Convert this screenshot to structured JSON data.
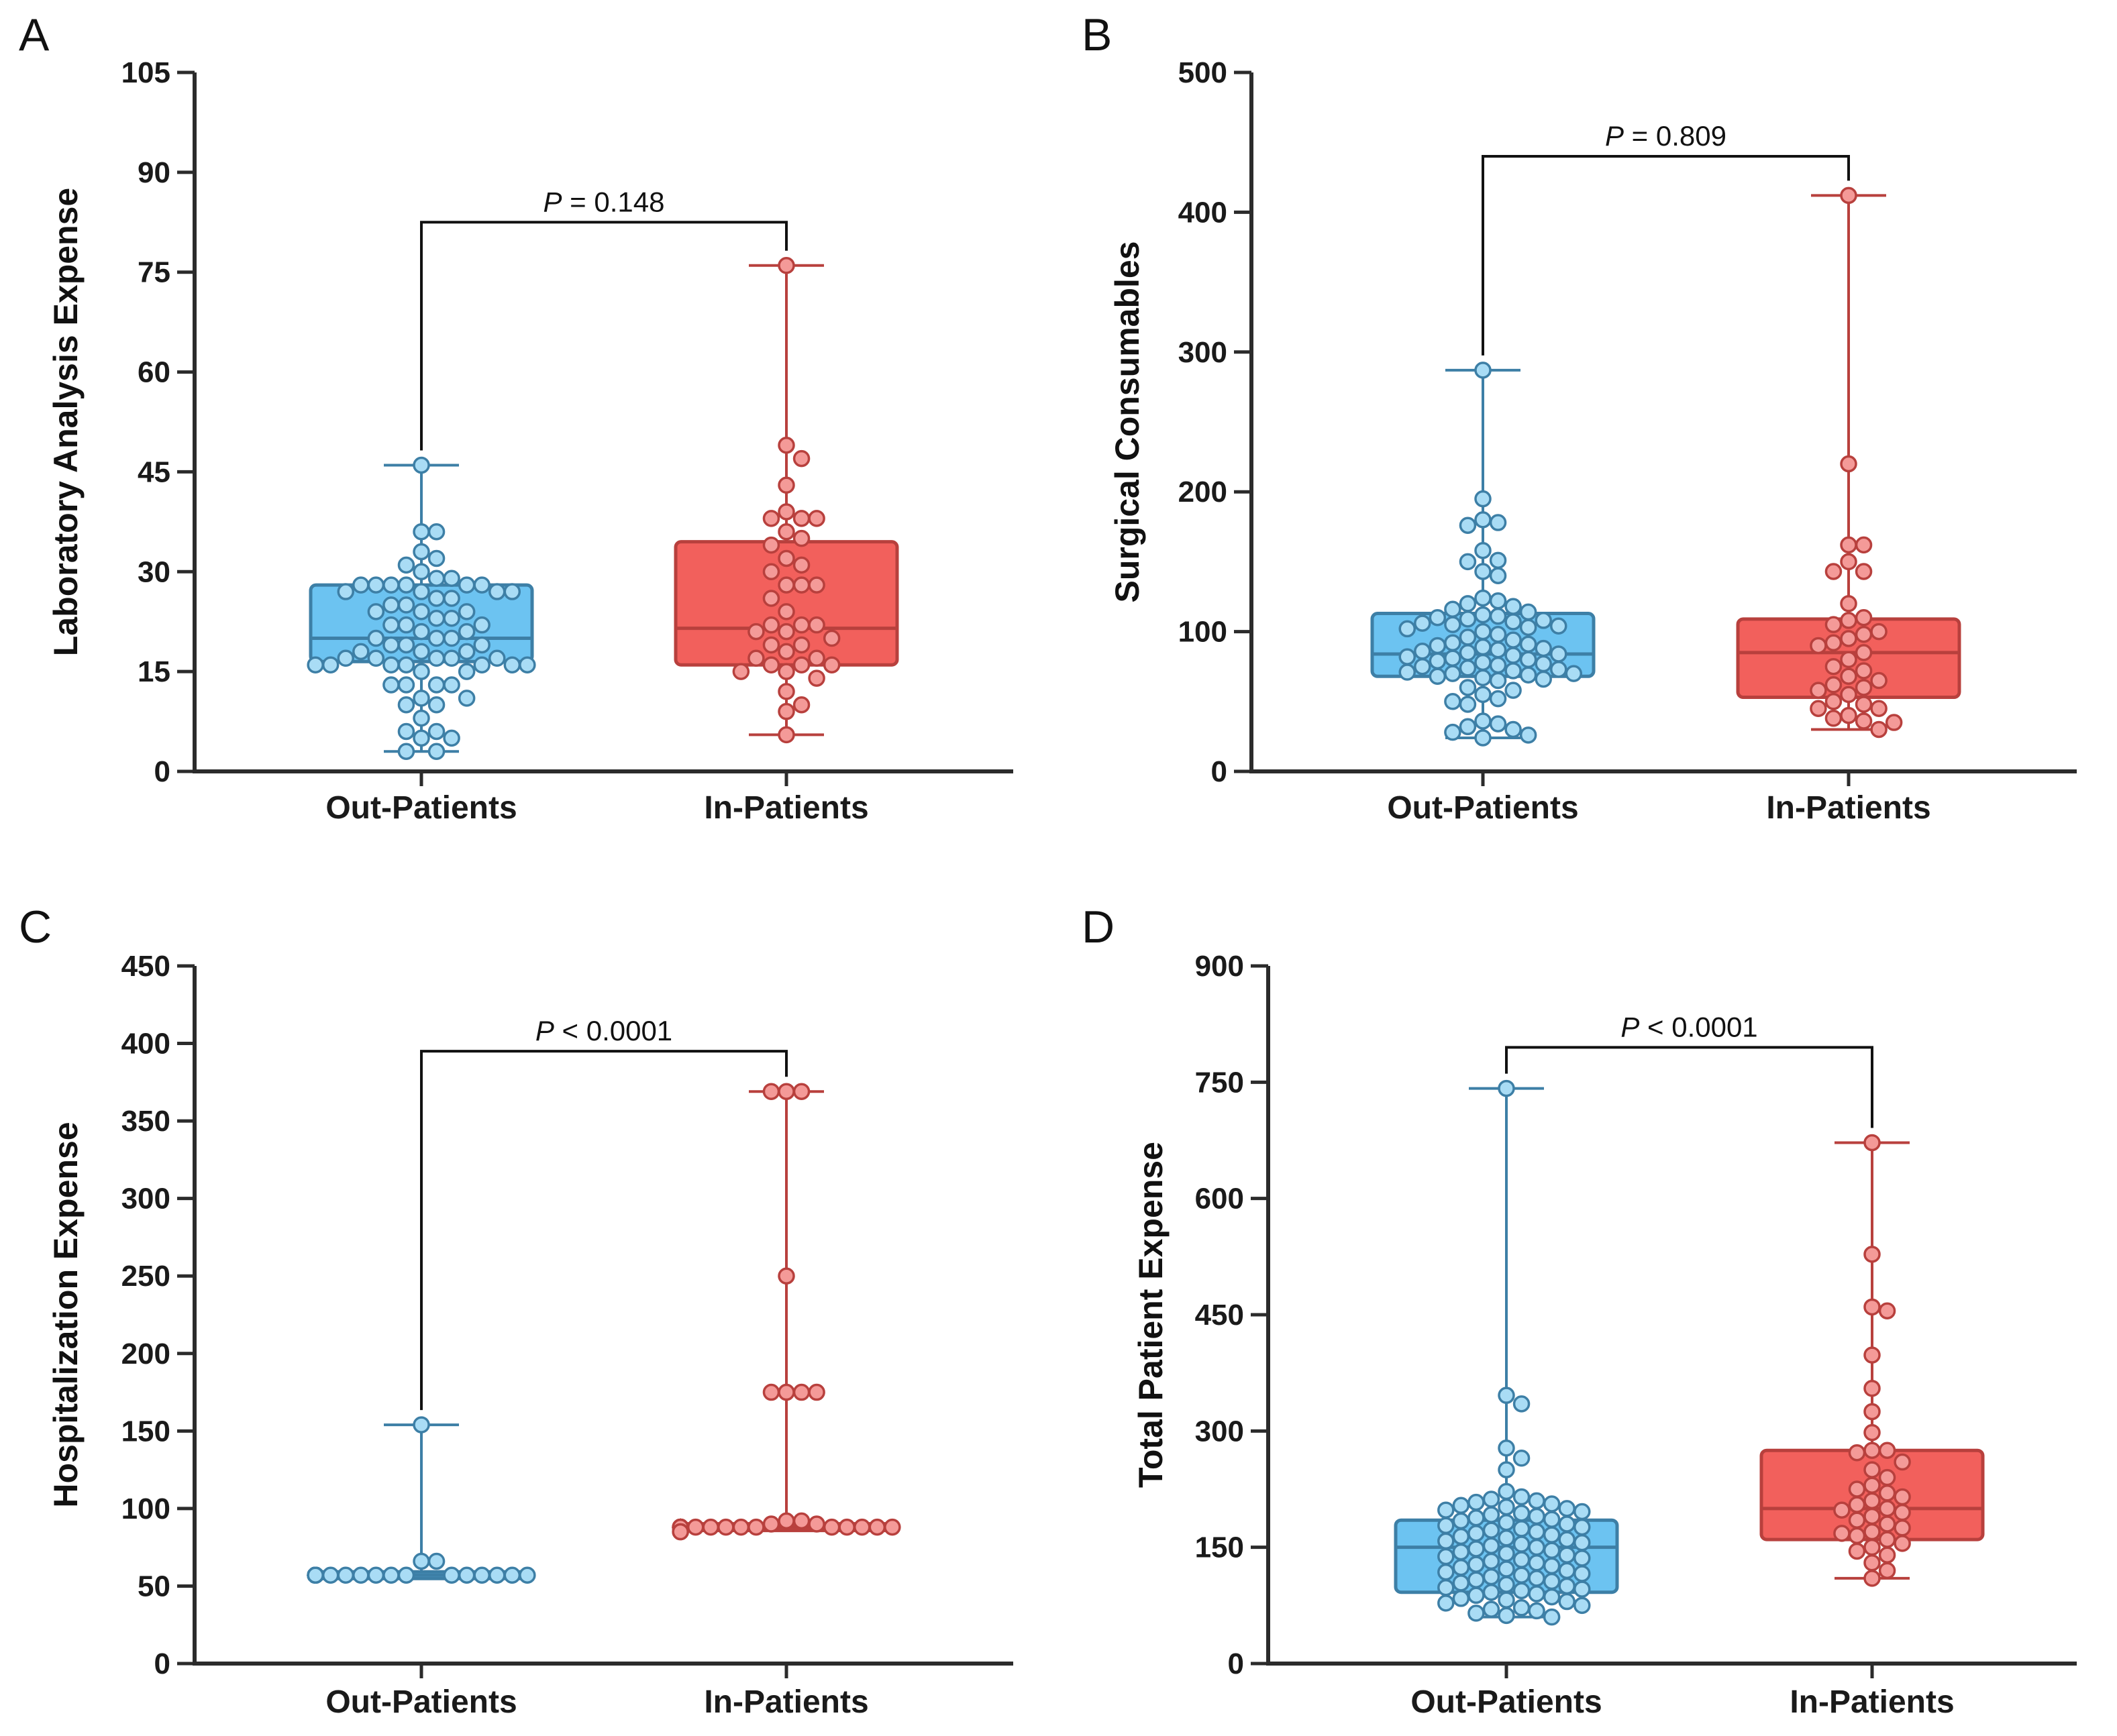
{
  "figure": {
    "colors": {
      "out_fill": "#6CC3F1",
      "out_stroke": "#3D7FA6",
      "out_point": "#A9DCF5",
      "in_fill": "#F2605C",
      "in_stroke": "#B8403D",
      "in_point": "#F49A98",
      "axis": "#2B2B2B"
    }
  },
  "chart_data": [
    {
      "panel": "A",
      "type": "box",
      "title": "",
      "ylabel": "Laboratory Analysis Expense",
      "xlabel": "",
      "categories": [
        "Out-Patients",
        "In-Patients"
      ],
      "ylim": [
        0,
        105
      ],
      "yticks": [
        0,
        15,
        30,
        45,
        60,
        75,
        90,
        105
      ],
      "tick_labels": [
        "0",
        "15",
        "30",
        "45",
        "60",
        "75",
        "90",
        "105"
      ],
      "p_value": {
        "label": "P",
        "rest": " = 0.148"
      },
      "bracket_y": 82.5,
      "series": [
        {
          "name": "Out-Patients",
          "min": 3,
          "q1": 16.5,
          "median": 20,
          "q3": 28,
          "max": 46,
          "points": [
            46,
            36,
            36,
            33,
            32,
            31,
            30,
            29,
            29,
            28,
            28,
            28,
            28,
            28,
            28,
            27,
            27,
            27,
            27,
            26,
            26,
            25,
            25,
            24,
            24,
            24,
            23,
            23,
            22,
            22,
            22,
            21,
            21,
            20,
            20,
            20,
            19,
            19,
            19,
            18,
            18,
            18,
            17,
            17,
            17,
            17,
            17,
            16,
            16,
            16,
            16,
            16,
            16,
            16,
            15,
            15,
            13,
            13,
            13,
            13,
            11,
            11,
            10,
            10,
            8,
            6,
            6,
            5,
            5,
            3,
            3
          ]
        },
        {
          "name": "In-Patients",
          "min": 5.5,
          "q1": 16,
          "median": 21.5,
          "q3": 34.5,
          "max": 76,
          "points": [
            76,
            49,
            47,
            43,
            39,
            38,
            38,
            38,
            36,
            35,
            34,
            32,
            31,
            30,
            28,
            28,
            28,
            26,
            24,
            22,
            22,
            22,
            21,
            21,
            20,
            19,
            19,
            18,
            17,
            17,
            16,
            16,
            16,
            15,
            15,
            14,
            12,
            10,
            9,
            5.5
          ]
        }
      ]
    },
    {
      "panel": "B",
      "type": "box",
      "title": "",
      "ylabel": "Surgical Consumables",
      "xlabel": "",
      "categories": [
        "Out-Patients",
        "In-Patients"
      ],
      "ylim": [
        0,
        500
      ],
      "yticks": [
        0,
        100,
        200,
        300,
        400,
        500
      ],
      "tick_labels": [
        "0",
        "100",
        "200",
        "300",
        "400",
        "500"
      ],
      "p_value": {
        "label": "P",
        "rest": " = 0.809"
      },
      "bracket_y": 440,
      "series": [
        {
          "name": "Out-Patients",
          "min": 24,
          "q1": 68,
          "median": 84,
          "q3": 113,
          "max": 287,
          "points": [
            287,
            195,
            180,
            178,
            176,
            158,
            151,
            150,
            143,
            140,
            124,
            122,
            120,
            118,
            116,
            114,
            112,
            111,
            110,
            109,
            108,
            107,
            106,
            105,
            104,
            103,
            102,
            100,
            98,
            96,
            94,
            92,
            91,
            90,
            89,
            88,
            87,
            86,
            85,
            84,
            83,
            82,
            81,
            80,
            79,
            78,
            77,
            76,
            75,
            74,
            73,
            72,
            71,
            70,
            70,
            69,
            68,
            67,
            66,
            65,
            60,
            58,
            55,
            52,
            50,
            48,
            36,
            34,
            32,
            30,
            28,
            26,
            24
          ]
        },
        {
          "name": "In-Patients",
          "min": 30,
          "q1": 53,
          "median": 85,
          "q3": 109,
          "max": 412,
          "points": [
            412,
            220,
            162,
            162,
            150,
            143,
            143,
            120,
            110,
            108,
            105,
            100,
            98,
            95,
            92,
            90,
            85,
            80,
            75,
            72,
            68,
            65,
            62,
            60,
            58,
            55,
            50,
            48,
            45,
            45,
            40,
            38,
            36,
            35,
            30
          ]
        }
      ]
    },
    {
      "panel": "C",
      "type": "box",
      "title": "",
      "ylabel": "Hospitalization Expense",
      "xlabel": "",
      "categories": [
        "Out-Patients",
        "In-Patients"
      ],
      "ylim": [
        0,
        450
      ],
      "yticks": [
        0,
        50,
        100,
        150,
        200,
        250,
        300,
        350,
        400,
        450
      ],
      "tick_labels": [
        "0",
        "50",
        "100",
        "150",
        "200",
        "250",
        "300",
        "350",
        "400",
        "450"
      ],
      "p_value": {
        "label": "P",
        "rest": " < 0.0001"
      },
      "bracket_y": 395,
      "series": [
        {
          "name": "Out-Patients",
          "min": 57,
          "q1": 57,
          "median": 57,
          "q3": 57,
          "max": 154,
          "points": [
            154,
            66,
            66,
            57,
            57,
            57,
            57,
            57,
            57,
            57,
            57,
            57,
            57,
            57,
            57,
            57,
            57,
            57,
            57,
            57,
            57,
            57,
            57,
            57,
            57,
            57,
            57,
            57,
            57,
            57,
            57,
            57,
            57,
            57,
            57,
            57,
            57,
            57,
            57,
            57,
            57,
            57,
            57,
            57,
            57,
            57,
            57
          ]
        },
        {
          "name": "In-Patients",
          "min": 88,
          "q1": 88,
          "median": 88,
          "q3": 88,
          "max": 369,
          "points": [
            369,
            369,
            369,
            250,
            175,
            175,
            175,
            175,
            92,
            92,
            90,
            90,
            88,
            88,
            88,
            88,
            88,
            88,
            88,
            88,
            88,
            88,
            88,
            88,
            88,
            88,
            88,
            88,
            88,
            88,
            88,
            88,
            88,
            88,
            88,
            88,
            85,
            85
          ]
        }
      ]
    },
    {
      "panel": "D",
      "type": "box",
      "title": "",
      "ylabel": "Total Patient Expense",
      "xlabel": "",
      "categories": [
        "Out-Patients",
        "In-Patients"
      ],
      "ylim": [
        0,
        900
      ],
      "yticks": [
        0,
        150,
        300,
        450,
        600,
        750,
        900
      ],
      "tick_labels": [
        "0",
        "150",
        "300",
        "450",
        "600",
        "750",
        "900"
      ],
      "p_value": {
        "label": "P",
        "rest": " < 0.0001"
      },
      "bracket_y": 795,
      "series": [
        {
          "name": "Out-Patients",
          "min": 60,
          "q1": 92,
          "median": 150,
          "q3": 185,
          "max": 742,
          "points": [
            742,
            346,
            335,
            278,
            265,
            250,
            222,
            215,
            212,
            210,
            208,
            206,
            204,
            202,
            200,
            198,
            196,
            194,
            192,
            190,
            188,
            186,
            184,
            182,
            180,
            178,
            176,
            174,
            172,
            170,
            168,
            166,
            164,
            162,
            160,
            158,
            156,
            154,
            152,
            150,
            148,
            146,
            144,
            142,
            140,
            138,
            136,
            134,
            132,
            130,
            128,
            126,
            124,
            122,
            120,
            118,
            116,
            114,
            112,
            110,
            108,
            106,
            104,
            102,
            100,
            98,
            96,
            94,
            92,
            90,
            88,
            86,
            84,
            82,
            80,
            78,
            75,
            72,
            70,
            68,
            65,
            62,
            60
          ]
        },
        {
          "name": "In-Patients",
          "min": 110,
          "q1": 160,
          "median": 200,
          "q3": 275,
          "max": 672,
          "points": [
            672,
            528,
            460,
            455,
            398,
            355,
            325,
            298,
            275,
            275,
            272,
            260,
            250,
            240,
            230,
            225,
            220,
            215,
            210,
            205,
            200,
            198,
            195,
            190,
            185,
            180,
            175,
            170,
            168,
            165,
            160,
            155,
            150,
            145,
            140,
            130,
            120,
            110
          ]
        }
      ]
    }
  ]
}
